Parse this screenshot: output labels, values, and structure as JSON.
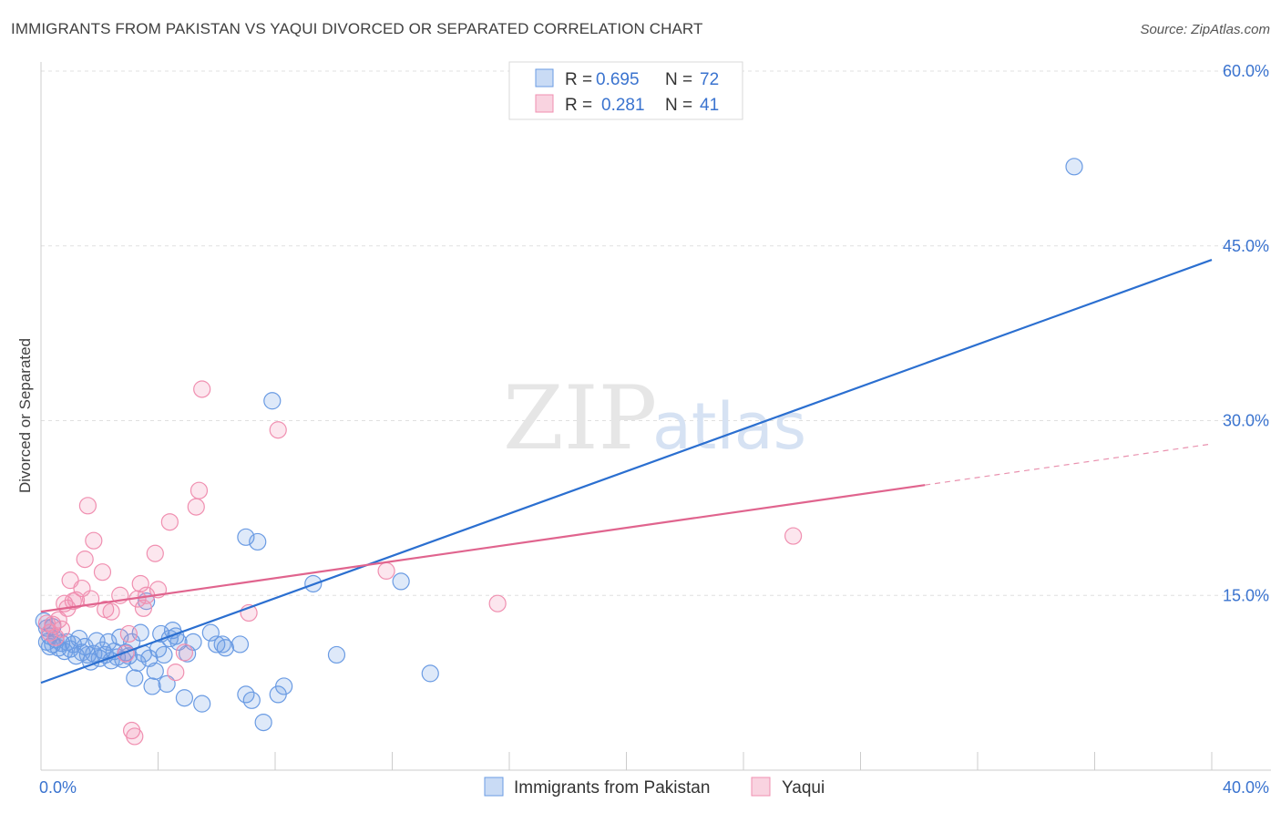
{
  "header": {
    "title": "IMMIGRANTS FROM PAKISTAN VS YAQUI DIVORCED OR SEPARATED CORRELATION CHART",
    "source": "Source: ZipAtlas.com"
  },
  "watermark": {
    "zip": "ZIP",
    "atlas": "atlas"
  },
  "colors": {
    "blue": "#6a9be3",
    "blue_line": "#2b6fd0",
    "pink": "#f08fb0",
    "pink_line": "#e0648e",
    "tick": "#3a73cf"
  },
  "legend": {
    "rows": [
      {
        "r_label": "R =",
        "r_value": "0.695",
        "n_label": "N =",
        "n_value": "72"
      },
      {
        "r_label": "R =",
        "r_value": "0.281",
        "n_label": "N =",
        "n_value": "41"
      }
    ]
  },
  "chart_data": {
    "type": "scatter",
    "ylabel": "Divorced or Separated",
    "xlim": [
      0,
      40
    ],
    "ylim": [
      0,
      60
    ],
    "y_ticks": [
      {
        "value": 15,
        "label": "15.0%"
      },
      {
        "value": 30,
        "label": "30.0%"
      },
      {
        "value": 45,
        "label": "45.0%"
      },
      {
        "value": 60,
        "label": "60.0%"
      }
    ],
    "x_tick_labels": [
      {
        "value": 0,
        "label": "0.0%"
      },
      {
        "value": 40,
        "label": "40.0%"
      }
    ],
    "x_minor_ticks": [
      4,
      8,
      12,
      16,
      20,
      24,
      28,
      32,
      36,
      40
    ],
    "series": [
      {
        "name": "Immigrants from Pakistan",
        "color": "#6a9be3",
        "trend": {
          "x0": 0,
          "y0": 7.5,
          "x1": 40,
          "y1": 43.8,
          "solid_to": 40
        },
        "points": [
          [
            0.2,
            12.2
          ],
          [
            0.3,
            11.5
          ],
          [
            0.4,
            10.8
          ],
          [
            0.5,
            11.2
          ],
          [
            0.6,
            10.5
          ],
          [
            0.7,
            10.9
          ],
          [
            0.8,
            10.2
          ],
          [
            0.9,
            11.0
          ],
          [
            1.0,
            10.4
          ],
          [
            1.1,
            10.8
          ],
          [
            1.2,
            9.8
          ],
          [
            1.3,
            11.3
          ],
          [
            1.4,
            10.1
          ],
          [
            1.5,
            10.6
          ],
          [
            1.6,
            9.9
          ],
          [
            1.7,
            9.3
          ],
          [
            1.8,
            10.0
          ],
          [
            1.9,
            11.1
          ],
          [
            2.0,
            9.6
          ],
          [
            2.1,
            10.3
          ],
          [
            2.2,
            9.9
          ],
          [
            2.3,
            11.0
          ],
          [
            2.4,
            9.4
          ],
          [
            2.5,
            10.2
          ],
          [
            2.6,
            9.7
          ],
          [
            2.7,
            11.4
          ],
          [
            2.8,
            9.5
          ],
          [
            2.9,
            10.1
          ],
          [
            3.0,
            9.8
          ],
          [
            3.1,
            11.0
          ],
          [
            3.2,
            7.9
          ],
          [
            3.3,
            9.2
          ],
          [
            3.4,
            11.8
          ],
          [
            3.5,
            10.0
          ],
          [
            3.6,
            14.5
          ],
          [
            3.7,
            9.6
          ],
          [
            3.8,
            7.2
          ],
          [
            3.9,
            8.5
          ],
          [
            4.0,
            10.4
          ],
          [
            4.1,
            11.7
          ],
          [
            4.2,
            9.9
          ],
          [
            4.3,
            7.4
          ],
          [
            4.4,
            11.3
          ],
          [
            4.5,
            12.0
          ],
          [
            4.6,
            11.5
          ],
          [
            4.7,
            11.0
          ],
          [
            4.9,
            6.2
          ],
          [
            5.0,
            10.0
          ],
          [
            5.2,
            11.0
          ],
          [
            5.5,
            5.7
          ],
          [
            5.8,
            11.8
          ],
          [
            6.0,
            10.8
          ],
          [
            6.2,
            10.8
          ],
          [
            6.3,
            10.5
          ],
          [
            6.8,
            10.8
          ],
          [
            7.0,
            6.5
          ],
          [
            7.2,
            6.0
          ],
          [
            7.0,
            20.0
          ],
          [
            7.4,
            19.6
          ],
          [
            7.6,
            4.1
          ],
          [
            7.9,
            31.7
          ],
          [
            8.1,
            6.5
          ],
          [
            8.3,
            7.2
          ],
          [
            9.3,
            16.0
          ],
          [
            10.1,
            9.9
          ],
          [
            12.3,
            16.2
          ],
          [
            13.3,
            8.3
          ],
          [
            0.1,
            12.8
          ],
          [
            0.2,
            11.0
          ],
          [
            0.4,
            12.3
          ],
          [
            0.3,
            10.6
          ],
          [
            35.3,
            51.8
          ]
        ]
      },
      {
        "name": "Yaqui",
        "color": "#f08fb0",
        "trend": {
          "x0": 0,
          "y0": 13.6,
          "x1": 40,
          "y1": 28.0,
          "solid_to": 30.2
        },
        "points": [
          [
            0.2,
            12.6
          ],
          [
            0.3,
            11.8
          ],
          [
            0.4,
            12.5
          ],
          [
            0.5,
            11.4
          ],
          [
            0.6,
            12.9
          ],
          [
            0.7,
            12.1
          ],
          [
            0.8,
            14.3
          ],
          [
            0.9,
            13.9
          ],
          [
            1.0,
            16.3
          ],
          [
            1.1,
            14.5
          ],
          [
            1.2,
            14.6
          ],
          [
            1.4,
            15.6
          ],
          [
            1.5,
            18.1
          ],
          [
            1.6,
            22.7
          ],
          [
            1.7,
            14.7
          ],
          [
            1.8,
            19.7
          ],
          [
            2.1,
            17.0
          ],
          [
            2.2,
            13.8
          ],
          [
            2.4,
            13.6
          ],
          [
            2.7,
            15.0
          ],
          [
            2.9,
            10.0
          ],
          [
            3.0,
            11.7
          ],
          [
            3.1,
            3.4
          ],
          [
            3.2,
            2.9
          ],
          [
            3.3,
            14.7
          ],
          [
            3.4,
            16.0
          ],
          [
            3.5,
            13.9
          ],
          [
            3.6,
            15.0
          ],
          [
            3.9,
            18.6
          ],
          [
            4.0,
            15.5
          ],
          [
            4.4,
            21.3
          ],
          [
            4.6,
            8.4
          ],
          [
            4.9,
            10.1
          ],
          [
            5.3,
            22.6
          ],
          [
            5.4,
            24.0
          ],
          [
            5.5,
            32.7
          ],
          [
            7.1,
            13.5
          ],
          [
            8.1,
            29.2
          ],
          [
            11.8,
            17.1
          ],
          [
            15.6,
            14.3
          ],
          [
            25.7,
            20.1
          ]
        ]
      }
    ]
  }
}
